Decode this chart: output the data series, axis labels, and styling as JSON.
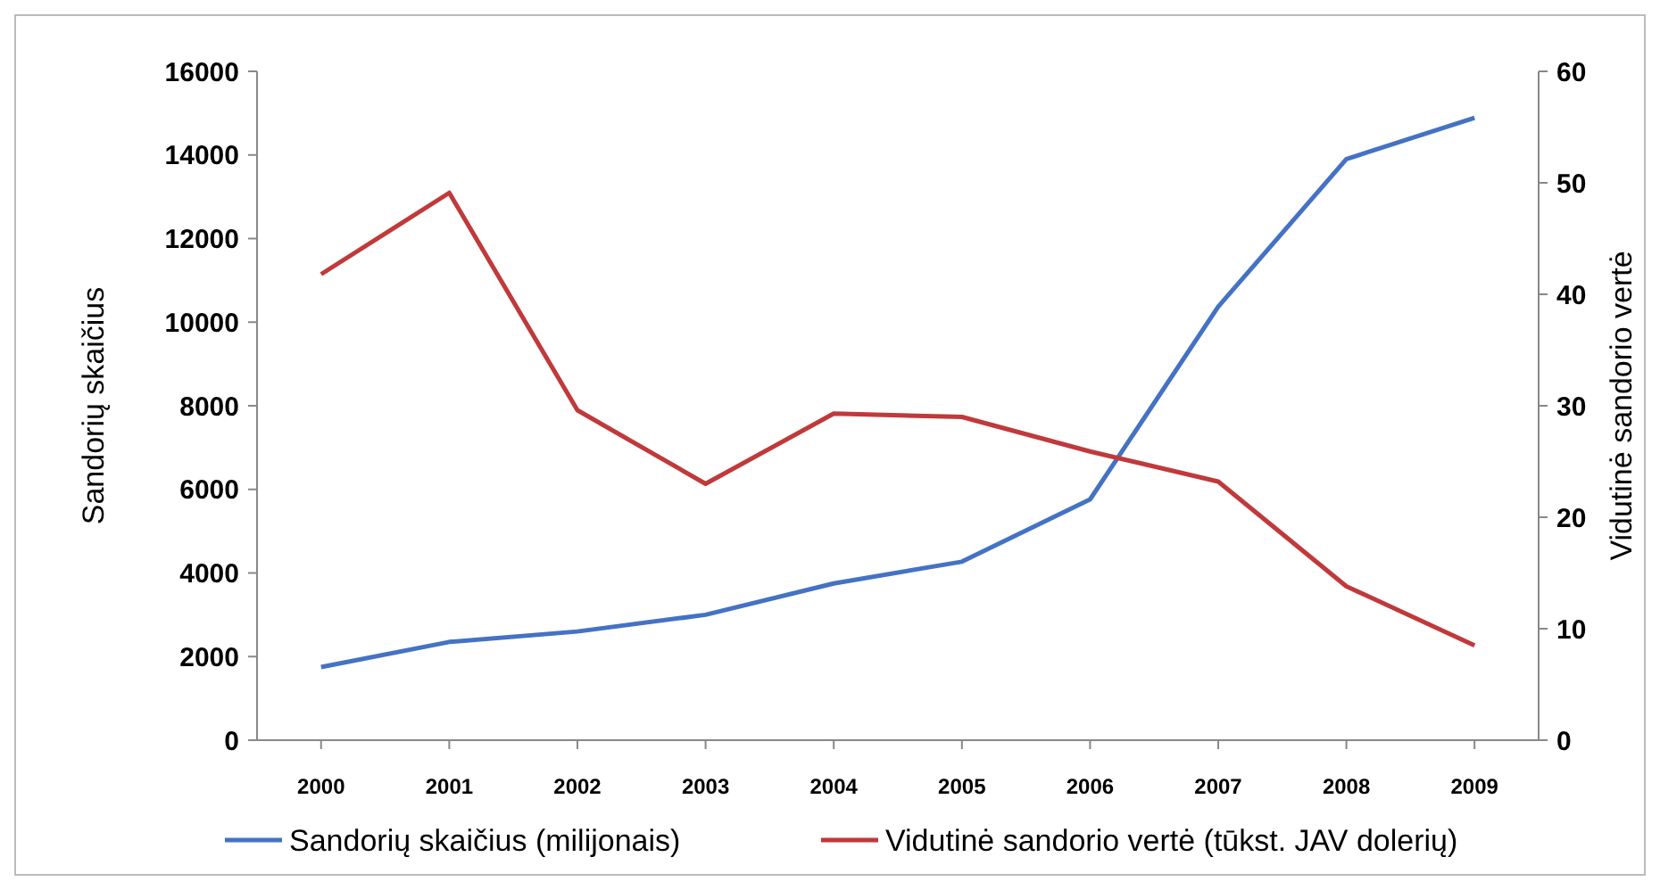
{
  "chart_data": {
    "type": "line",
    "ylabel": "Sandorių skaičius",
    "y2label": "Vidutinė sandorio vertė",
    "categories": [
      "2000",
      "2001",
      "2002",
      "2003",
      "2004",
      "2005",
      "2006",
      "2007",
      "2008",
      "2009"
    ],
    "ylim": [
      0,
      16000
    ],
    "yticks": [
      0,
      2000,
      4000,
      6000,
      8000,
      10000,
      12000,
      14000,
      16000
    ],
    "y2lim": [
      0,
      60
    ],
    "y2ticks": [
      0,
      10,
      20,
      30,
      40,
      50,
      60
    ],
    "legend": "bottom",
    "grid": false,
    "series": [
      {
        "name": "Sandorių skaičius (milijonais)",
        "color": "#4472c4",
        "values": [
          1750,
          2350,
          2600,
          3000,
          3750,
          4270,
          5760,
          10370,
          13900,
          14890
        ]
      },
      {
        "name": "Vidutinė sandorio vertė (tūkst. JAV dolerių)",
        "color": "#c0393b",
        "axis": "y2",
        "values": [
          41.8,
          49.1,
          29.6,
          23,
          29.3,
          29,
          25.9,
          23.2,
          13.8,
          8.5
        ]
      }
    ]
  }
}
